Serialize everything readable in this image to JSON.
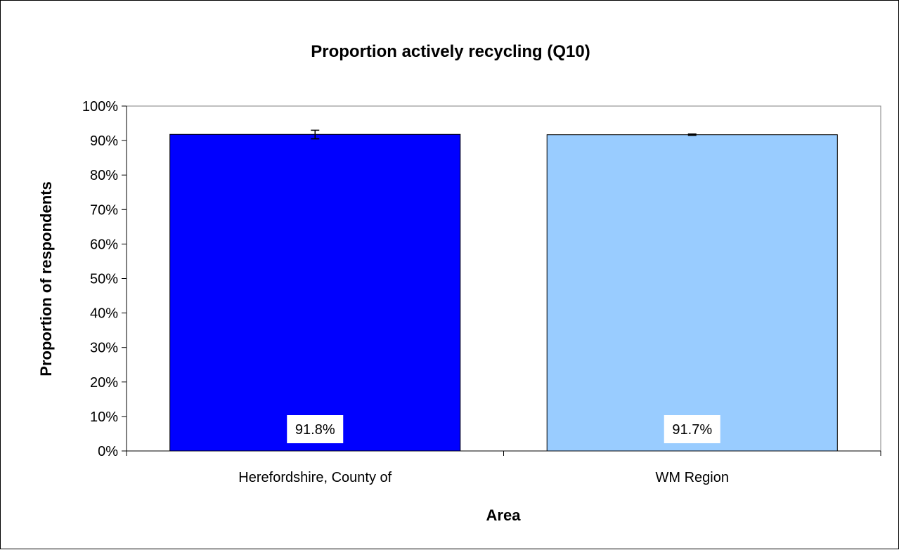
{
  "chart_data": {
    "type": "bar",
    "title": "Proportion actively recycling (Q10)",
    "xlabel": "Area",
    "ylabel": "Proportion of respondents",
    "categories": [
      "Herefordshire, County of",
      "WM Region"
    ],
    "values": [
      91.8,
      91.7
    ],
    "data_labels": [
      "91.8%",
      "91.7%"
    ],
    "error_bars": [
      [
        90.5,
        93.0
      ],
      [
        91.5,
        91.9
      ]
    ],
    "bar_colors": [
      "#0000FF",
      "#99CCFF"
    ],
    "ylim": [
      0,
      100
    ],
    "yticks": [
      0,
      10,
      20,
      30,
      40,
      50,
      60,
      70,
      80,
      90,
      100
    ],
    "ytick_labels": [
      "0%",
      "10%",
      "20%",
      "30%",
      "40%",
      "50%",
      "60%",
      "70%",
      "80%",
      "90%",
      "100%"
    ],
    "grid": false,
    "legend": "none"
  }
}
